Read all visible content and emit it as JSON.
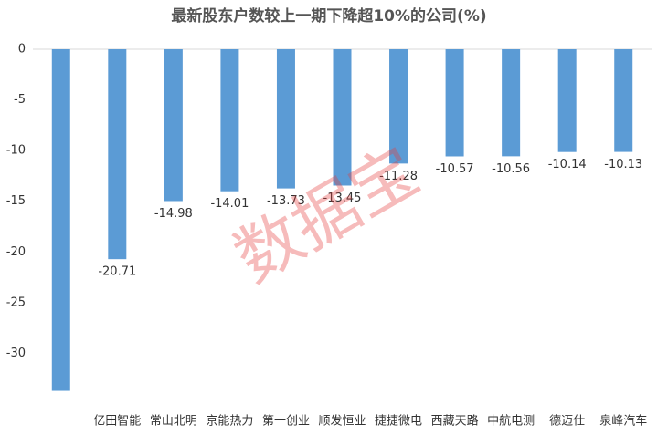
{
  "chart_data": {
    "type": "bar",
    "title": "最新股东户数较上一期下降超10%的公司(%)",
    "categories": [
      null,
      "亿田智能",
      "常山北明",
      "京能热力",
      "第一创业",
      "顺发恒业",
      "捷捷微电",
      "西藏天路",
      "中航电测",
      "德迈仕",
      "泉峰汽车"
    ],
    "values": [
      -33.7,
      -20.71,
      -14.98,
      -14.01,
      -13.73,
      -13.45,
      -11.28,
      -10.57,
      -10.56,
      -10.14,
      -10.13
    ],
    "value_labels": [
      null,
      "-20.71",
      "-14.98",
      "-14.01",
      "-13.73",
      "-13.45",
      "-11.28",
      "-10.57",
      "-10.56",
      "-10.14",
      "-10.13"
    ],
    "color": "#5b9bd5",
    "ylim": [
      -35,
      0
    ],
    "yticks": [
      0,
      -5,
      -10,
      -15,
      -20,
      -25,
      -30
    ],
    "grid": false,
    "watermark": "数据宝"
  }
}
